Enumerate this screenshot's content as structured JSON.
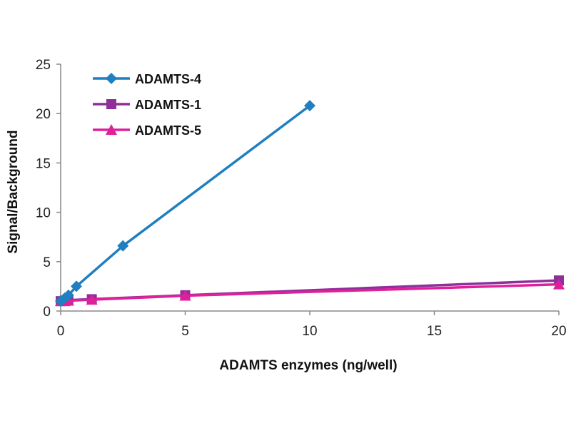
{
  "chart_data": {
    "type": "line",
    "xlabel": "ADAMTS enzymes (ng/well)",
    "ylabel": "Signal/Background",
    "xlim": [
      0,
      20
    ],
    "ylim": [
      0,
      25
    ],
    "x_ticks": [
      0,
      5,
      10,
      15,
      20
    ],
    "y_ticks": [
      0,
      5,
      10,
      15,
      20,
      25
    ],
    "grid": false,
    "legend_position": "top-left",
    "series": [
      {
        "name": "ADAMTS-4",
        "color": "#1f7fc1",
        "marker": "diamond",
        "x": [
          0,
          0.16,
          0.31,
          0.63,
          2.5,
          10
        ],
        "y": [
          1,
          1.3,
          1.6,
          2.5,
          6.6,
          20.8
        ]
      },
      {
        "name": "ADAMTS-1",
        "color": "#8e2f9a",
        "marker": "square",
        "x": [
          0,
          0.16,
          0.31,
          1.25,
          5,
          20
        ],
        "y": [
          1,
          1.05,
          1.1,
          1.2,
          1.6,
          3.1
        ]
      },
      {
        "name": "ADAMTS-5",
        "color": "#e0209a",
        "marker": "triangle",
        "x": [
          0,
          0.16,
          0.31,
          1.25,
          5,
          20
        ],
        "y": [
          1,
          1.0,
          1.05,
          1.15,
          1.55,
          2.7
        ]
      }
    ]
  }
}
